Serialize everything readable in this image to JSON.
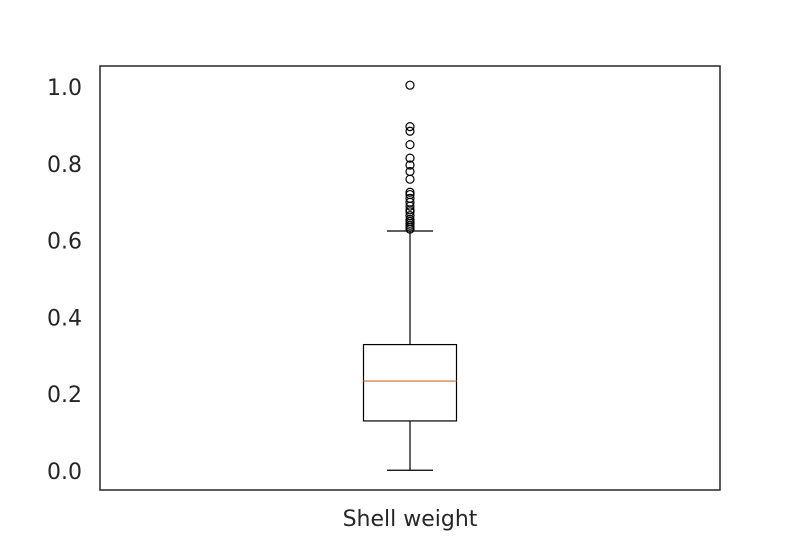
{
  "chart_data": {
    "type": "box",
    "title": "",
    "xlabel": "",
    "ylabel": "",
    "categories": [
      "Shell weight"
    ],
    "ylim": [
      -0.05,
      1.055
    ],
    "yticks": [
      0.0,
      0.2,
      0.4,
      0.6,
      0.8,
      1.0
    ],
    "ytick_labels": [
      "0.0",
      "0.2",
      "0.4",
      "0.6",
      "0.8",
      "1.0"
    ],
    "grid": false,
    "boxes": [
      {
        "name": "Shell weight",
        "whisker_low": 0.0015,
        "q1": 0.13,
        "median": 0.234,
        "q3": 0.329,
        "whisker_high": 0.625,
        "outliers": [
          1.005,
          0.897,
          0.885,
          0.85,
          0.815,
          0.797,
          0.78,
          0.76,
          0.726,
          0.72,
          0.71,
          0.7,
          0.69,
          0.68,
          0.675,
          0.665,
          0.655,
          0.65,
          0.645,
          0.64,
          0.635,
          0.63
        ]
      }
    ],
    "colors": {
      "box": "#000000",
      "median": "#dd8452",
      "axes": "#262626"
    }
  }
}
